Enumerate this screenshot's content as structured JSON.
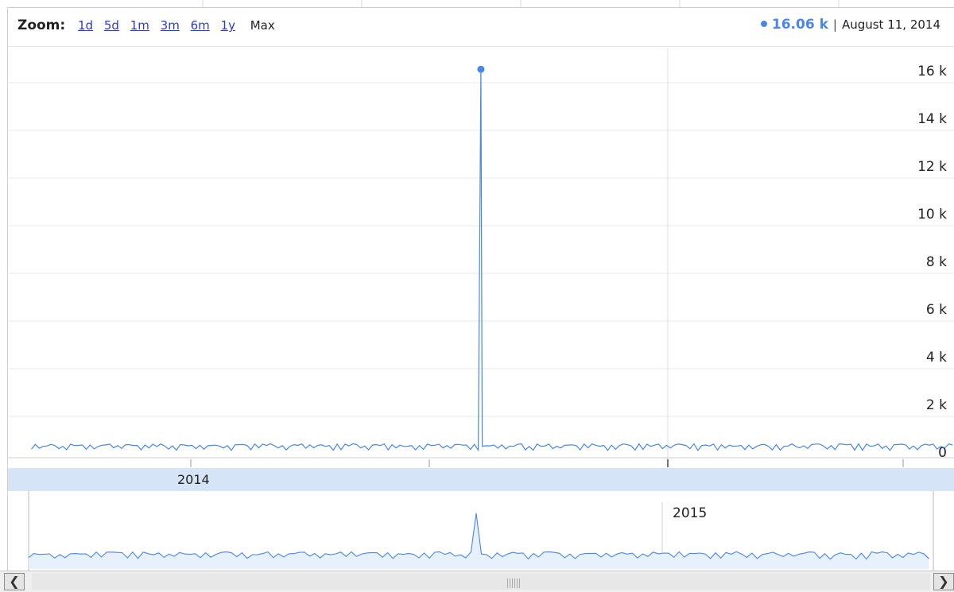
{
  "toolbar": {
    "zoom_label": "Zoom:",
    "zoom_options": [
      "1d",
      "5d",
      "1m",
      "3m",
      "6m",
      "1y"
    ],
    "zoom_selected": "Max",
    "readout_value": "16.06 k",
    "readout_separator": "|",
    "readout_date": "August 11, 2014"
  },
  "colors": {
    "series": "#4a86e8",
    "link": "#2a3fbf",
    "navigator_band": "#d6e4f7"
  },
  "chart_data": {
    "type": "line",
    "x_start": "2013-09-01",
    "x_end": "2015-10-31",
    "x_ticks": [
      {
        "date": "2014-01-01",
        "label": "2014"
      },
      {
        "date": "2015-01-01",
        "label": "2015"
      }
    ],
    "y_ticks": [
      "0",
      "2 k",
      "4 k",
      "6 k",
      "8 k",
      "10 k",
      "12 k",
      "14 k",
      "16 k"
    ],
    "y_tick_values": [
      0,
      2000,
      4000,
      6000,
      8000,
      10000,
      12000,
      14000,
      16000
    ],
    "ylim": [
      0,
      17000
    ],
    "baseline_min": 30,
    "baseline_max": 420,
    "spike": {
      "date": "2014-08-11",
      "value": 16060
    },
    "selected_point": {
      "date": "2014-08-11",
      "value": 16060
    },
    "grid": true,
    "has_navigator": true
  },
  "navigator": {
    "year_label": "2015"
  }
}
